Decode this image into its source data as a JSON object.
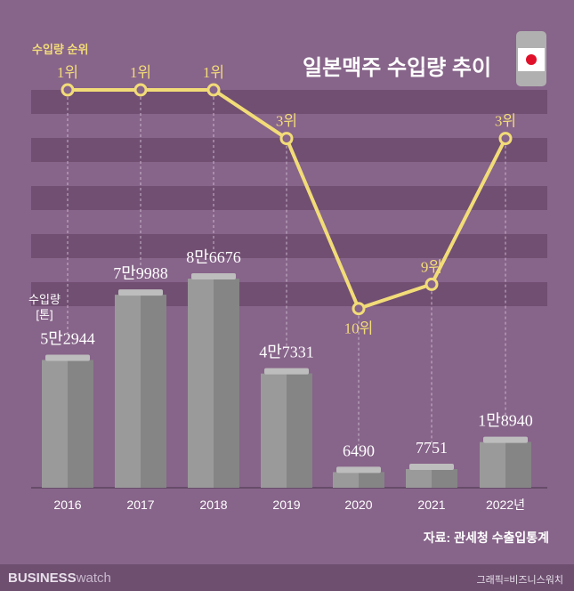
{
  "title": "일본맥주 수입량 추이",
  "source": "자료: 관세청 수출입통계",
  "credit": "그래픽=비즈니스워치",
  "brand": {
    "bold": "BUSINESS",
    "light": "watch"
  },
  "colors": {
    "background": "#87648a",
    "band": "#714f72",
    "line": "#f2dc78",
    "bar": "#9a9a9a"
  },
  "chart_data": {
    "type": "bar+line",
    "categories": [
      "2016",
      "2017",
      "2018",
      "2019",
      "2020",
      "2021",
      "2022년"
    ],
    "bar_series": {
      "label": "수입량 [톤]",
      "values": [
        52944,
        79988,
        86676,
        47331,
        6490,
        7751,
        18940
      ],
      "labels": [
        "5만2944",
        "7만9988",
        "8만6676",
        "4만7331",
        "6490",
        "7751",
        "1만8940"
      ]
    },
    "line_series": {
      "label": "수입량 순위",
      "values": [
        1,
        1,
        1,
        3,
        10,
        9,
        3
      ],
      "labels": [
        "1위",
        "1위",
        "1위",
        "3위",
        "10위",
        "9위",
        "3위"
      ]
    }
  },
  "unit_label": [
    "수입량",
    "[톤]"
  ],
  "icon": "japan-flag-beer-can-icon"
}
